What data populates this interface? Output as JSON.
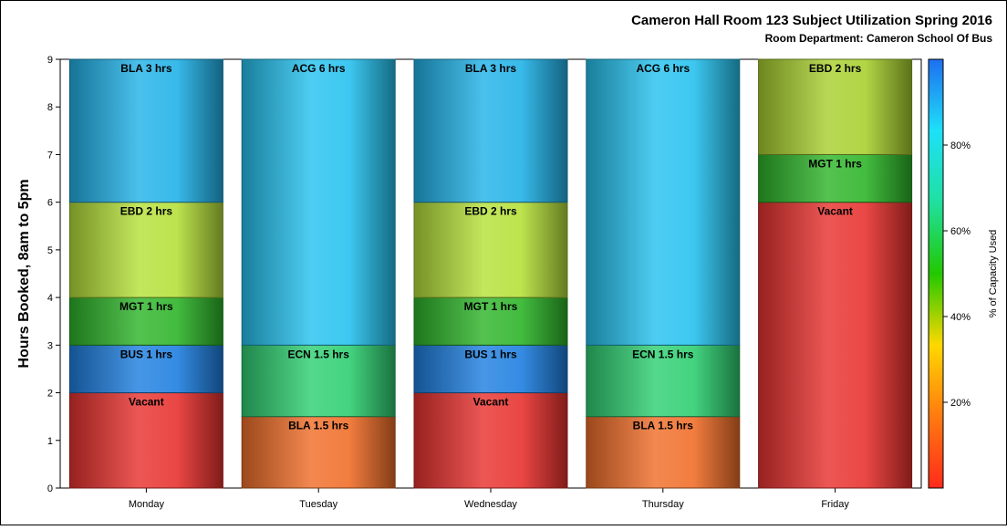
{
  "chart_data": {
    "type": "bar",
    "stacked": true,
    "title": "Cameron Hall Room 123 Subject Utilization Spring 2016",
    "subtitle": "Room Department:  Cameron School Of Bus",
    "xlabel": "",
    "ylabel": "Hours Booked, 8am to 5pm",
    "ylim": [
      0,
      9
    ],
    "yticks": [
      "0",
      "1",
      "2",
      "3",
      "4",
      "5",
      "6",
      "7",
      "8",
      "9"
    ],
    "categories": [
      "Monday",
      "Tuesday",
      "Wednesday",
      "Thursday",
      "Friday"
    ],
    "stacks": [
      [
        {
          "label": "Vacant",
          "hours": 2,
          "pct": 0,
          "color": "#e8322f"
        },
        {
          "label": "BUS 1 hrs",
          "hours": 1,
          "pct": 90,
          "color": "#1f7fe0"
        },
        {
          "label": "MGT 1 hrs",
          "hours": 1,
          "pct": 62,
          "color": "#2eb52a"
        },
        {
          "label": "EBD 2 hrs",
          "hours": 2,
          "pct": 55,
          "color": "#b6e03a"
        },
        {
          "label": "BLA 3 hrs",
          "hours": 3,
          "pct": 82,
          "color": "#22b2e8"
        }
      ],
      [
        {
          "label": "BLA 1.5 hrs",
          "hours": 1.5,
          "pct": 33,
          "color": "#f06e2a"
        },
        {
          "label": "ECN 1.5 hrs",
          "hours": 1.5,
          "pct": 72,
          "color": "#2fcf72"
        },
        {
          "label": "ACG 6 hrs",
          "hours": 6,
          "pct": 83,
          "color": "#27c2ef"
        }
      ],
      [
        {
          "label": "Vacant",
          "hours": 2,
          "pct": 0,
          "color": "#e8322f"
        },
        {
          "label": "BUS 1 hrs",
          "hours": 1,
          "pct": 90,
          "color": "#1f7fe0"
        },
        {
          "label": "MGT 1 hrs",
          "hours": 1,
          "pct": 62,
          "color": "#2eb52a"
        },
        {
          "label": "EBD 2 hrs",
          "hours": 2,
          "pct": 55,
          "color": "#b6e03a"
        },
        {
          "label": "BLA 3 hrs",
          "hours": 3,
          "pct": 82,
          "color": "#22b2e8"
        }
      ],
      [
        {
          "label": "BLA 1.5 hrs",
          "hours": 1.5,
          "pct": 33,
          "color": "#f06e2a"
        },
        {
          "label": "ECN 1.5 hrs",
          "hours": 1.5,
          "pct": 72,
          "color": "#2fcf72"
        },
        {
          "label": "ACG 6 hrs",
          "hours": 6,
          "pct": 83,
          "color": "#27c2ef"
        }
      ],
      [
        {
          "label": "Vacant",
          "hours": 6,
          "pct": 0,
          "color": "#e8322f"
        },
        {
          "label": "MGT 1 hrs",
          "hours": 1,
          "pct": 62,
          "color": "#2eb52a"
        },
        {
          "label": "EBD 2 hrs",
          "hours": 2,
          "pct": 55,
          "color": "#a8d030"
        }
      ]
    ],
    "colorbar": {
      "label": "% of Capacity Used",
      "ticks": [
        "20%",
        "40%",
        "60%",
        "80%"
      ],
      "tick_values": [
        20,
        40,
        60,
        80
      ],
      "range": [
        0,
        100
      ],
      "colors": [
        "#ff2a1a",
        "#ff7a10",
        "#ffd800",
        "#22c800",
        "#1fe0a0",
        "#1ee0f8",
        "#1e6ff0"
      ]
    },
    "grid": false,
    "legend": "right"
  }
}
